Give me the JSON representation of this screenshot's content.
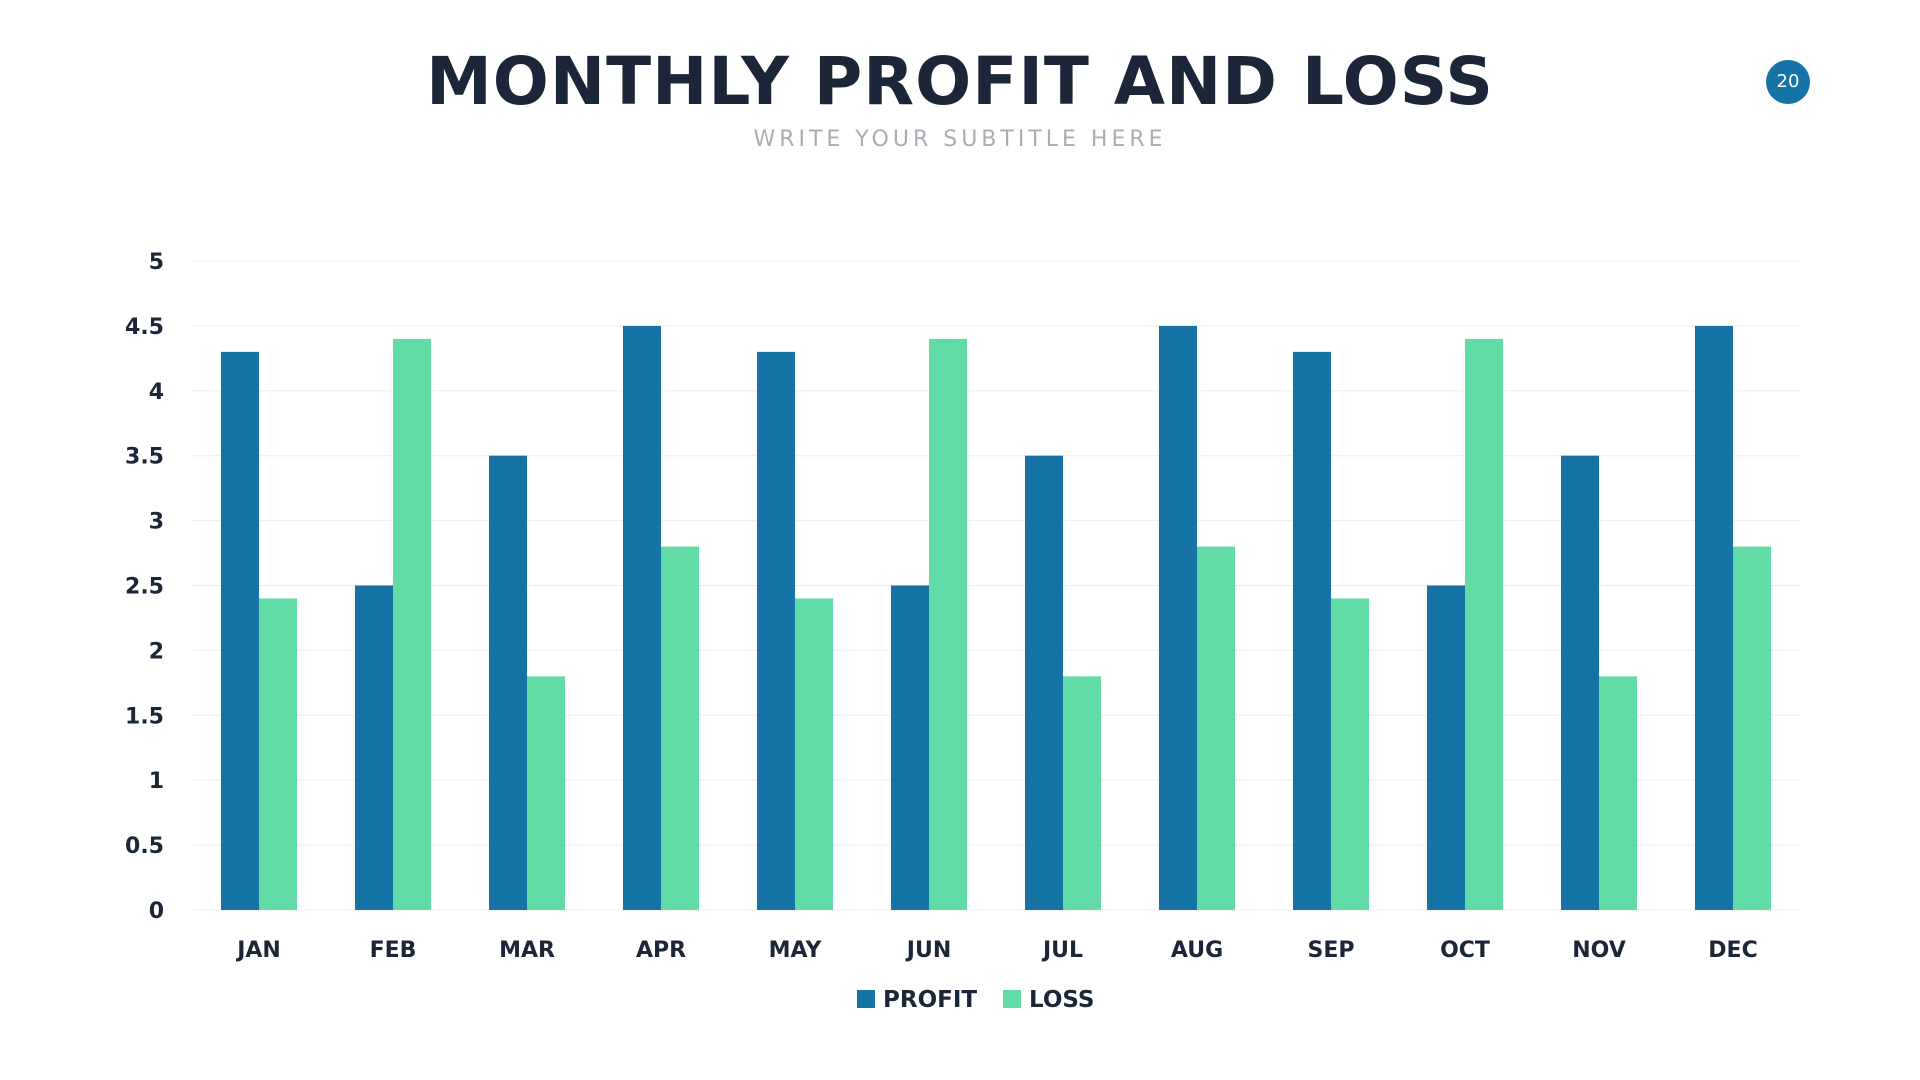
{
  "page_number": "20",
  "chart_data": {
    "type": "bar",
    "title": "MONTHLY PROFIT AND LOSS",
    "subtitle": "WRITE YOUR SUBTITLE HERE",
    "categories": [
      "JAN",
      "FEB",
      "MAR",
      "APR",
      "MAY",
      "JUN",
      "JUL",
      "AUG",
      "SEP",
      "OCT",
      "NOV",
      "DEC"
    ],
    "series": [
      {
        "name": "PROFIT",
        "color": "#1573a5",
        "values": [
          4.3,
          2.5,
          3.5,
          4.5,
          4.3,
          2.5,
          3.5,
          4.5,
          4.3,
          2.5,
          3.5,
          4.5
        ]
      },
      {
        "name": "LOSS",
        "color": "#62dca6",
        "values": [
          2.4,
          4.4,
          1.8,
          2.8,
          2.4,
          4.4,
          1.8,
          2.8,
          2.4,
          4.4,
          1.8,
          2.8
        ]
      }
    ],
    "yticks": [
      "0",
      "0.5",
      "1",
      "1.5",
      "2",
      "2.5",
      "3",
      "3.5",
      "4",
      "4.5",
      "5"
    ],
    "ylim": [
      0,
      5
    ],
    "xlabel": "",
    "ylabel": "",
    "grid": true,
    "legend": "bottom-center"
  }
}
